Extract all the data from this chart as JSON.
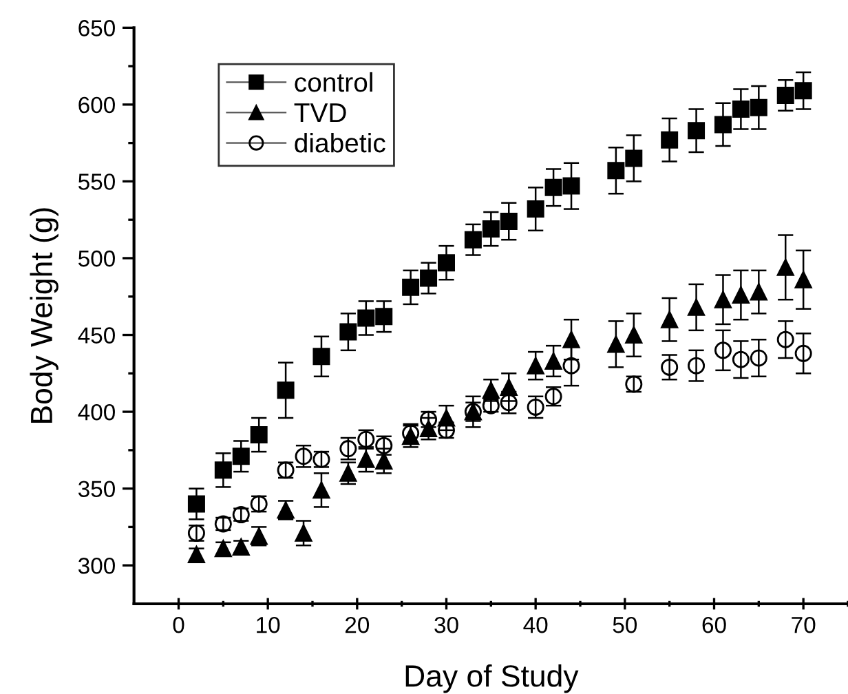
{
  "chart_data": {
    "type": "scatter",
    "xlabel": "Day of Study",
    "ylabel": "Body Weight (g)",
    "xlim": [
      -5,
      75
    ],
    "ylim": [
      275,
      650
    ],
    "xticks": [
      0,
      {
        "value": 5,
        "label": null
      },
      10,
      {
        "value": 15,
        "label": null
      },
      20,
      {
        "value": 25,
        "label": null
      },
      30,
      {
        "value": 35,
        "label": null
      },
      40,
      {
        "value": 45,
        "label": null
      },
      50,
      {
        "value": 55,
        "label": null
      },
      60,
      {
        "value": 65,
        "label": null
      },
      70,
      {
        "value": 75,
        "label": null
      }
    ],
    "yticks": [
      300,
      {
        "value": 325,
        "label": null
      },
      350,
      {
        "value": 375,
        "label": null
      },
      400,
      {
        "value": 425,
        "label": null
      },
      450,
      {
        "value": 475,
        "label": null
      },
      500,
      {
        "value": 525,
        "label": null
      },
      550,
      {
        "value": 575,
        "label": null
      },
      600,
      {
        "value": 625,
        "label": null
      },
      650
    ],
    "grid": false,
    "legend": "top left",
    "x": [
      2,
      5,
      7,
      9,
      12,
      14,
      16,
      19,
      21,
      23,
      26,
      28,
      30,
      33,
      35,
      37,
      40,
      42,
      44,
      49,
      51,
      55,
      58,
      61,
      63,
      65,
      68,
      70
    ],
    "series": [
      {
        "name": "control",
        "color": "#000000",
        "marker": "square",
        "values": [
          340,
          362,
          371,
          385,
          414,
          null,
          436,
          452,
          461,
          462,
          481,
          487,
          497,
          512,
          519,
          524,
          532,
          546,
          547,
          557,
          565,
          577,
          583,
          587,
          597,
          598,
          606,
          609
        ],
        "errors": [
          10,
          11,
          10,
          11,
          18,
          null,
          13,
          12,
          11,
          10,
          11,
          10,
          11,
          10,
          11,
          12,
          14,
          12,
          15,
          15,
          15,
          14,
          14,
          14,
          13,
          14,
          10,
          12
        ]
      },
      {
        "name": "TVD",
        "color": "#000000",
        "marker": "triangle",
        "values": [
          307,
          311,
          312,
          319,
          336,
          321,
          349,
          360,
          369,
          368,
          384,
          389,
          396,
          400,
          414,
          416,
          430,
          433,
          447,
          444,
          450,
          460,
          468,
          473,
          476,
          478,
          494,
          486
        ],
        "errors": [
          4,
          4,
          4,
          6,
          6,
          8,
          11,
          7,
          8,
          8,
          7,
          7,
          8,
          10,
          7,
          9,
          9,
          10,
          13,
          15,
          14,
          14,
          15,
          16,
          16,
          14,
          21,
          19
        ]
      },
      {
        "name": "diabetic",
        "color": "#000000",
        "marker": "circle",
        "values": [
          321,
          327,
          333,
          340,
          362,
          371,
          369,
          376,
          382,
          378,
          386,
          395,
          388,
          400,
          404,
          406,
          403,
          410,
          430,
          null,
          418,
          429,
          430,
          440,
          434,
          435,
          447,
          438
        ],
        "errors": [
          5,
          4,
          4,
          5,
          5,
          7,
          5,
          7,
          6,
          6,
          6,
          5,
          5,
          6,
          4,
          7,
          7,
          6,
          13,
          null,
          5,
          8,
          10,
          13,
          12,
          12,
          12,
          13
        ]
      }
    ]
  }
}
